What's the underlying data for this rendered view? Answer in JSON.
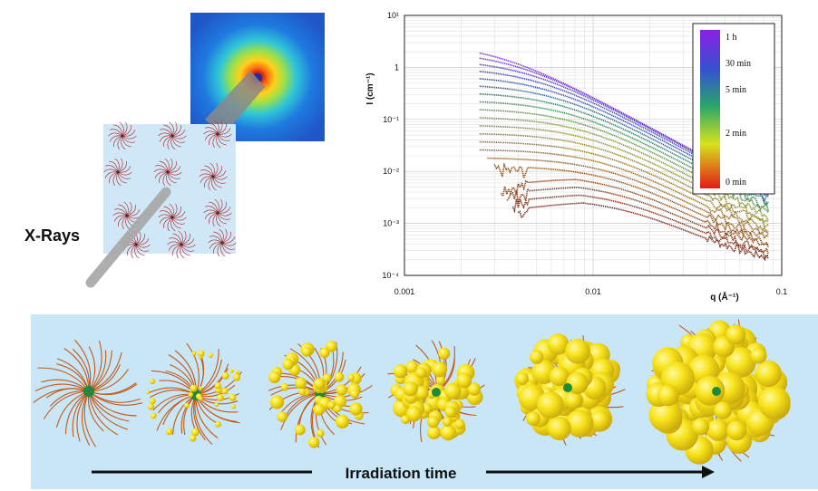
{
  "xray_label": "X-Rays",
  "process_label": "Irradiation time",
  "colorbar_labels": [
    "1 h",
    "30 min",
    "5 min",
    "2 min",
    "0 min"
  ],
  "colorbar_colors": [
    "#7d2ae8",
    "#3553c9",
    "#2ea26a",
    "#d7e11e",
    "#e02a1a"
  ],
  "particle_color": "#f6e21b",
  "chain_color": "#c25a1a",
  "core_color": "#1f8a3a",
  "chart_data": {
    "type": "scatter",
    "xlabel": "q (Å⁻¹)",
    "ylabel": "I (cm⁻¹)",
    "xscale": "log",
    "yscale": "log",
    "xlim": [
      0.001,
      0.1
    ],
    "ylim": [
      0.0001,
      10
    ],
    "x_tick_labels": [
      "0.001",
      "0.01",
      "0.1"
    ],
    "y_tick_labels": [
      "10⁻⁴",
      "10⁻³",
      "10⁻²",
      "10⁻¹",
      "1",
      "10¹"
    ],
    "grid": true,
    "legend": "colorbar top-right",
    "series_count": 20,
    "q_range": [
      0.0025,
      0.085
    ],
    "I_at_low_q": [
      3.0,
      0.003
    ],
    "I_at_high_q_approx": 0.00025
  }
}
